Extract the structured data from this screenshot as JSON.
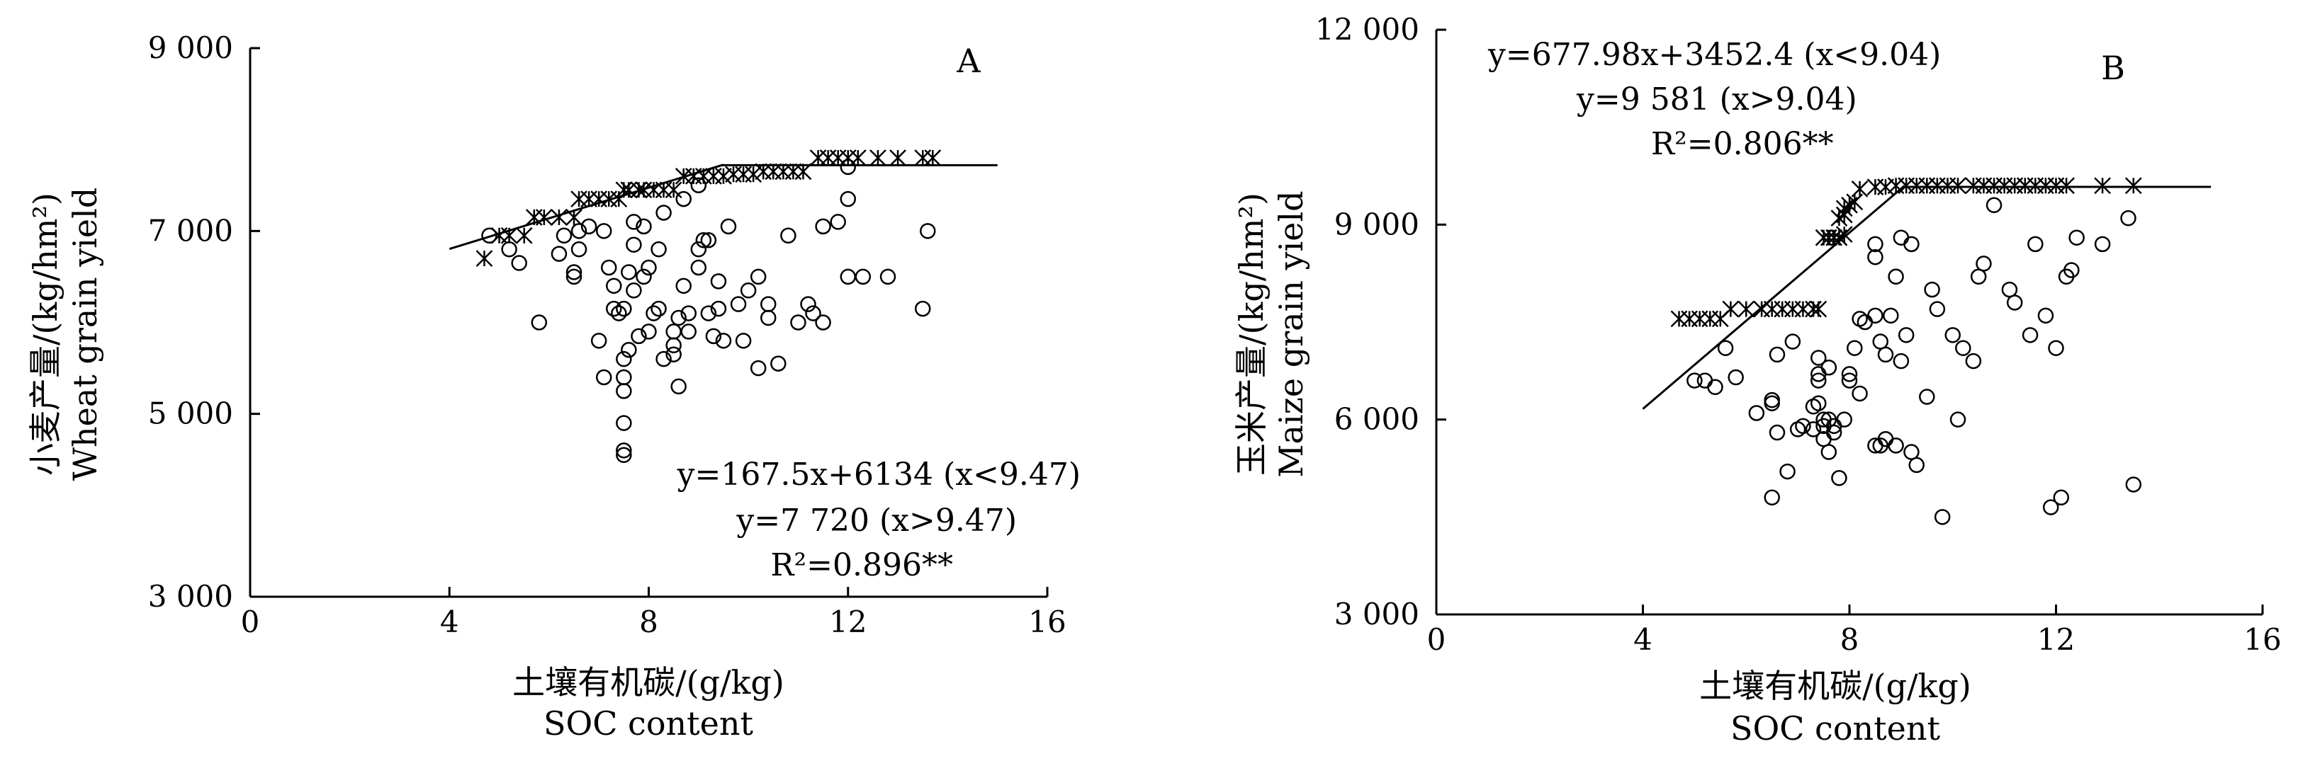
{
  "chart_data": [
    {
      "panel_label": "A",
      "type": "scatter",
      "xlabel": "土壤有机碳/(g/kg)",
      "xlabel_en": "SOC content",
      "ylabel": "小麦产量/(kg/hm²)",
      "ylabel_en": "Wheat grain yield",
      "xlim": [
        0,
        16
      ],
      "ylim": [
        3000,
        9000
      ],
      "xticks": [
        0,
        4,
        8,
        12,
        16
      ],
      "xtick_labels": [
        "0",
        "4",
        "8",
        "12",
        "16"
      ],
      "yticks": [
        3000,
        5000,
        7000,
        9000
      ],
      "ytick_labels": [
        "3 000",
        "5 000",
        "7 000",
        "9 000"
      ],
      "equation_lines": [
        "y=167.5x+6134 (x<9.47)",
        "y=7 720 (x>9.47)",
        "R²=0.896**"
      ],
      "fit": {
        "type": "linear-plateau",
        "slope": 167.5,
        "intercept": 6134,
        "breakpoint": 9.47,
        "plateau": 7720,
        "x_range": [
          4.0,
          15.0
        ]
      },
      "series": [
        {
          "marker": "circle",
          "points": [
            [
              4.8,
              6950
            ],
            [
              5.2,
              6800
            ],
            [
              5.4,
              6650
            ],
            [
              5.8,
              6000
            ],
            [
              6.2,
              6750
            ],
            [
              6.3,
              6950
            ],
            [
              6.5,
              6500
            ],
            [
              6.5,
              6550
            ],
            [
              6.6,
              6800
            ],
            [
              6.6,
              7000
            ],
            [
              6.8,
              7050
            ],
            [
              7.0,
              5800
            ],
            [
              7.1,
              5400
            ],
            [
              7.1,
              7000
            ],
            [
              7.2,
              6600
            ],
            [
              7.3,
              6150
            ],
            [
              7.3,
              6400
            ],
            [
              7.4,
              6100
            ],
            [
              7.5,
              6150
            ],
            [
              7.5,
              5250
            ],
            [
              7.5,
              5400
            ],
            [
              7.5,
              5600
            ],
            [
              7.5,
              4900
            ],
            [
              7.5,
              4600
            ],
            [
              7.5,
              4550
            ],
            [
              7.6,
              5700
            ],
            [
              7.6,
              6550
            ],
            [
              7.7,
              6350
            ],
            [
              7.7,
              6850
            ],
            [
              7.7,
              7100
            ],
            [
              7.8,
              5850
            ],
            [
              7.9,
              6500
            ],
            [
              7.9,
              7050
            ],
            [
              8.0,
              6600
            ],
            [
              8.0,
              5900
            ],
            [
              8.1,
              6100
            ],
            [
              8.2,
              6800
            ],
            [
              8.2,
              6150
            ],
            [
              8.3,
              5600
            ],
            [
              8.3,
              7200
            ],
            [
              8.5,
              5650
            ],
            [
              8.5,
              5900
            ],
            [
              8.5,
              5750
            ],
            [
              8.6,
              6050
            ],
            [
              8.6,
              5300
            ],
            [
              8.7,
              6400
            ],
            [
              8.7,
              7350
            ],
            [
              8.8,
              6100
            ],
            [
              8.8,
              5900
            ],
            [
              9.0,
              6800
            ],
            [
              9.0,
              6600
            ],
            [
              9.0,
              7500
            ],
            [
              9.1,
              6900
            ],
            [
              9.2,
              6100
            ],
            [
              9.2,
              6900
            ],
            [
              9.3,
              5850
            ],
            [
              9.4,
              6150
            ],
            [
              9.4,
              6450
            ],
            [
              9.5,
              5800
            ],
            [
              9.6,
              7050
            ],
            [
              9.8,
              6200
            ],
            [
              9.9,
              5800
            ],
            [
              10.0,
              6350
            ],
            [
              10.2,
              5500
            ],
            [
              10.2,
              6500
            ],
            [
              10.4,
              6050
            ],
            [
              10.4,
              6200
            ],
            [
              10.6,
              5550
            ],
            [
              10.8,
              6950
            ],
            [
              11.0,
              6000
            ],
            [
              11.2,
              6200
            ],
            [
              11.3,
              6100
            ],
            [
              11.5,
              6000
            ],
            [
              11.5,
              7050
            ],
            [
              11.8,
              7100
            ],
            [
              12.0,
              7350
            ],
            [
              12.0,
              6500
            ],
            [
              12.0,
              7700
            ],
            [
              12.3,
              6500
            ],
            [
              12.8,
              6500
            ],
            [
              13.5,
              6150
            ],
            [
              13.6,
              7000
            ]
          ]
        },
        {
          "marker": "asterisk",
          "points": [
            [
              4.7,
              6700
            ],
            [
              5.0,
              6950
            ],
            [
              5.2,
              6950
            ],
            [
              5.5,
              6950
            ],
            [
              5.7,
              7150
            ],
            [
              5.9,
              7150
            ],
            [
              6.2,
              7150
            ],
            [
              6.5,
              7150
            ],
            [
              6.6,
              7350
            ],
            [
              6.8,
              7350
            ],
            [
              7.0,
              7350
            ],
            [
              7.2,
              7350
            ],
            [
              7.4,
              7350
            ],
            [
              7.5,
              7450
            ],
            [
              7.6,
              7450
            ],
            [
              7.8,
              7450
            ],
            [
              7.9,
              7450
            ],
            [
              8.1,
              7450
            ],
            [
              8.3,
              7450
            ],
            [
              8.5,
              7450
            ],
            [
              8.7,
              7600
            ],
            [
              8.9,
              7600
            ],
            [
              9.1,
              7600
            ],
            [
              9.3,
              7600
            ],
            [
              9.5,
              7600
            ],
            [
              9.7,
              7620
            ],
            [
              9.9,
              7620
            ],
            [
              10.1,
              7620
            ],
            [
              10.3,
              7650
            ],
            [
              10.5,
              7650
            ],
            [
              10.7,
              7650
            ],
            [
              10.9,
              7650
            ],
            [
              11.1,
              7650
            ],
            [
              11.4,
              7800
            ],
            [
              11.6,
              7800
            ],
            [
              11.8,
              7800
            ],
            [
              12.0,
              7800
            ],
            [
              12.2,
              7800
            ],
            [
              12.6,
              7800
            ],
            [
              13.0,
              7800
            ],
            [
              13.5,
              7800
            ],
            [
              13.7,
              7800
            ]
          ]
        }
      ]
    },
    {
      "panel_label": "B",
      "type": "scatter",
      "xlabel": "土壤有机碳/(g/kg)",
      "xlabel_en": "SOC content",
      "ylabel": "玉米产量/(kg/hm²)",
      "ylabel_en": "Maize grain yield",
      "xlim": [
        0,
        16
      ],
      "ylim": [
        3000,
        12000
      ],
      "xticks": [
        0,
        4,
        8,
        12,
        16
      ],
      "xtick_labels": [
        "0",
        "4",
        "8",
        "12",
        "16"
      ],
      "yticks": [
        3000,
        6000,
        9000,
        12000
      ],
      "ytick_labels": [
        "3 000",
        "6 000",
        "9 000",
        "12 000"
      ],
      "equation_lines": [
        "y=677.98x+3452.4 (x<9.04)",
        "y=9 581 (x>9.04)",
        "R²=0.806**"
      ],
      "fit": {
        "type": "linear-plateau",
        "slope": 677.98,
        "intercept": 3452.4,
        "breakpoint": 9.04,
        "plateau": 9581,
        "x_range": [
          4.0,
          15.0
        ]
      },
      "series": [
        {
          "marker": "circle",
          "points": [
            [
              5.0,
              6600
            ],
            [
              5.2,
              6600
            ],
            [
              5.4,
              6500
            ],
            [
              5.6,
              7100
            ],
            [
              5.8,
              6650
            ],
            [
              6.2,
              6100
            ],
            [
              6.5,
              4800
            ],
            [
              6.5,
              6250
            ],
            [
              6.5,
              6300
            ],
            [
              6.6,
              5800
            ],
            [
              6.6,
              7000
            ],
            [
              6.8,
              5200
            ],
            [
              6.9,
              7200
            ],
            [
              7.0,
              5850
            ],
            [
              7.1,
              5900
            ],
            [
              7.3,
              5850
            ],
            [
              7.3,
              6200
            ],
            [
              7.4,
              6600
            ],
            [
              7.4,
              6700
            ],
            [
              7.4,
              6950
            ],
            [
              7.4,
              6250
            ],
            [
              7.5,
              5700
            ],
            [
              7.5,
              5900
            ],
            [
              7.5,
              6000
            ],
            [
              7.6,
              5500
            ],
            [
              7.6,
              6000
            ],
            [
              7.6,
              6800
            ],
            [
              7.7,
              5800
            ],
            [
              7.7,
              5900
            ],
            [
              7.8,
              5100
            ],
            [
              7.9,
              6000
            ],
            [
              8.0,
              6600
            ],
            [
              8.0,
              6700
            ],
            [
              8.1,
              7100
            ],
            [
              8.2,
              6400
            ],
            [
              8.2,
              7550
            ],
            [
              8.3,
              7500
            ],
            [
              8.5,
              5600
            ],
            [
              8.5,
              7600
            ],
            [
              8.5,
              8500
            ],
            [
              8.5,
              8700
            ],
            [
              8.6,
              7200
            ],
            [
              8.6,
              5600
            ],
            [
              8.7,
              5700
            ],
            [
              8.7,
              7000
            ],
            [
              8.8,
              7600
            ],
            [
              8.9,
              5600
            ],
            [
              8.9,
              8200
            ],
            [
              9.0,
              8800
            ],
            [
              9.0,
              6900
            ],
            [
              9.1,
              7300
            ],
            [
              9.2,
              5500
            ],
            [
              9.2,
              8700
            ],
            [
              9.3,
              5300
            ],
            [
              9.5,
              6350
            ],
            [
              9.6,
              8000
            ],
            [
              9.7,
              7700
            ],
            [
              9.8,
              4500
            ],
            [
              10.0,
              7300
            ],
            [
              10.1,
              6000
            ],
            [
              10.2,
              7100
            ],
            [
              10.4,
              6900
            ],
            [
              10.5,
              8200
            ],
            [
              10.6,
              8400
            ],
            [
              10.8,
              9300
            ],
            [
              11.1,
              8000
            ],
            [
              11.2,
              7800
            ],
            [
              11.5,
              7300
            ],
            [
              11.6,
              8700
            ],
            [
              11.8,
              7600
            ],
            [
              11.9,
              4650
            ],
            [
              12.0,
              7100
            ],
            [
              12.1,
              4800
            ],
            [
              12.2,
              8200
            ],
            [
              12.3,
              8300
            ],
            [
              12.4,
              8800
            ],
            [
              12.9,
              8700
            ],
            [
              13.4,
              9100
            ],
            [
              13.5,
              5000
            ]
          ]
        },
        {
          "marker": "asterisk",
          "points": [
            [
              4.7,
              7550
            ],
            [
              4.9,
              7550
            ],
            [
              5.1,
              7550
            ],
            [
              5.3,
              7550
            ],
            [
              5.5,
              7550
            ],
            [
              5.7,
              7700
            ],
            [
              6.0,
              7700
            ],
            [
              6.3,
              7700
            ],
            [
              6.5,
              7700
            ],
            [
              6.7,
              7700
            ],
            [
              6.9,
              7700
            ],
            [
              7.1,
              7700
            ],
            [
              7.3,
              7700
            ],
            [
              7.4,
              7700
            ],
            [
              7.5,
              8800
            ],
            [
              7.6,
              8800
            ],
            [
              7.7,
              8800
            ],
            [
              7.8,
              8800
            ],
            [
              7.9,
              8850
            ],
            [
              7.8,
              9100
            ],
            [
              7.9,
              9150
            ],
            [
              7.9,
              9250
            ],
            [
              8.0,
              9300
            ],
            [
              8.1,
              9350
            ],
            [
              8.2,
              9550
            ],
            [
              8.5,
              9580
            ],
            [
              8.7,
              9580
            ],
            [
              8.9,
              9600
            ],
            [
              9.1,
              9600
            ],
            [
              9.3,
              9600
            ],
            [
              9.5,
              9600
            ],
            [
              9.7,
              9600
            ],
            [
              9.9,
              9600
            ],
            [
              10.1,
              9600
            ],
            [
              10.4,
              9600
            ],
            [
              10.6,
              9600
            ],
            [
              10.8,
              9600
            ],
            [
              11.0,
              9600
            ],
            [
              11.2,
              9600
            ],
            [
              11.4,
              9600
            ],
            [
              11.6,
              9600
            ],
            [
              11.8,
              9600
            ],
            [
              12.0,
              9600
            ],
            [
              12.2,
              9600
            ],
            [
              12.9,
              9600
            ],
            [
              13.5,
              9600
            ]
          ]
        }
      ]
    }
  ]
}
